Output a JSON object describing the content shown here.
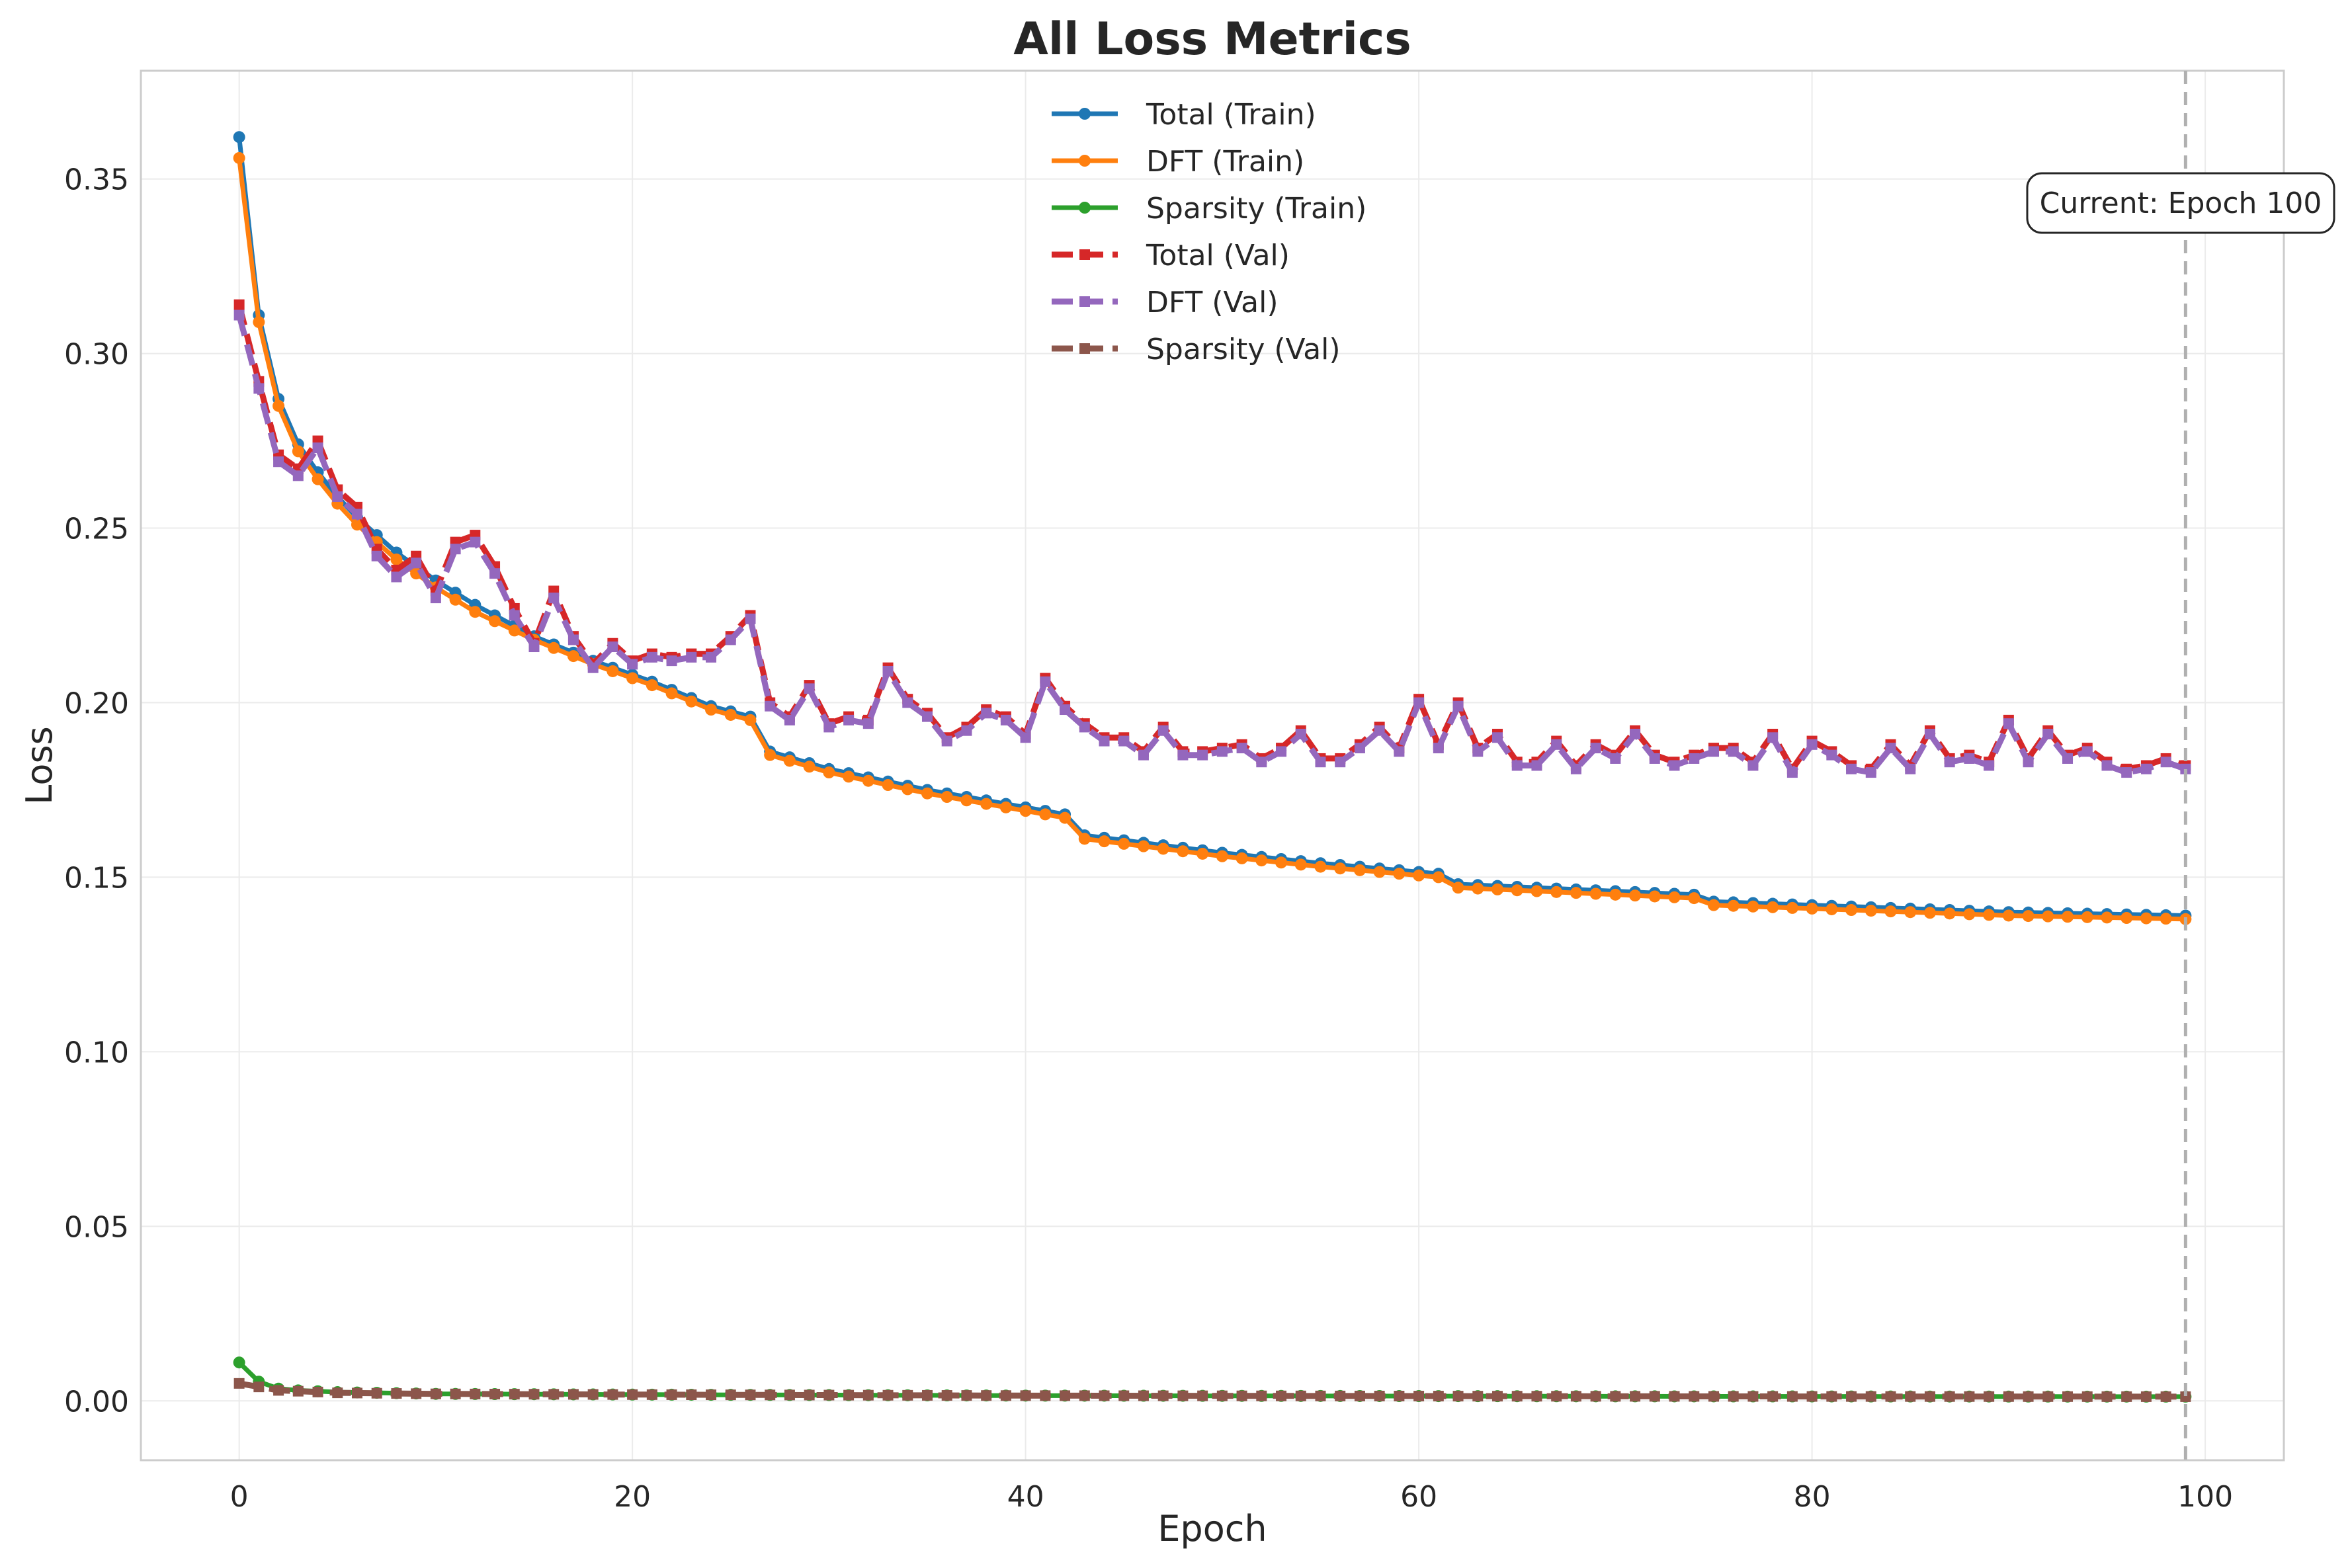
{
  "chart_data": {
    "type": "line",
    "title": "All Loss Metrics",
    "xlabel": "Epoch",
    "ylabel": "Loss",
    "xlim": [
      -5,
      104
    ],
    "ylim": [
      -0.017,
      0.381
    ],
    "xticks": [
      0,
      20,
      40,
      60,
      80,
      100
    ],
    "yticks": [
      0.0,
      0.05,
      0.1,
      0.15,
      0.2,
      0.25,
      0.3,
      0.35
    ],
    "ytick_labels": [
      "0.00",
      "0.05",
      "0.10",
      "0.15",
      "0.20",
      "0.25",
      "0.30",
      "0.35"
    ],
    "xtick_labels": [
      "0",
      "20",
      "40",
      "60",
      "80",
      "100"
    ],
    "grid": true,
    "legend_position": "upper-center",
    "annotation": {
      "text": "Current: Epoch 100",
      "epoch": 99
    },
    "series": [
      {
        "name": "Total (Train)",
        "color": "#1f77b4",
        "style": "solid",
        "marker": "circle",
        "knots": [
          [
            0,
            0.362
          ],
          [
            1,
            0.311
          ],
          [
            2,
            0.287
          ],
          [
            3,
            0.274
          ],
          [
            4,
            0.266
          ],
          [
            5,
            0.259
          ],
          [
            6,
            0.253
          ],
          [
            7,
            0.248
          ],
          [
            8,
            0.243
          ],
          [
            9,
            0.239
          ],
          [
            10,
            0.235
          ],
          [
            12,
            0.228
          ],
          [
            15,
            0.219
          ],
          [
            18,
            0.212
          ],
          [
            21,
            0.206
          ],
          [
            24,
            0.199
          ],
          [
            26,
            0.196
          ],
          [
            27,
            0.186
          ],
          [
            30,
            0.181
          ],
          [
            35,
            0.175
          ],
          [
            40,
            0.17
          ],
          [
            42,
            0.168
          ],
          [
            43,
            0.162
          ],
          [
            50,
            0.157
          ],
          [
            55,
            0.154
          ],
          [
            61,
            0.151
          ],
          [
            62,
            0.148
          ],
          [
            70,
            0.146
          ],
          [
            74,
            0.145
          ],
          [
            75,
            0.143
          ],
          [
            85,
            0.141
          ],
          [
            90,
            0.14
          ],
          [
            99,
            0.139
          ]
        ]
      },
      {
        "name": "DFT (Train)",
        "color": "#ff7f0e",
        "style": "solid",
        "marker": "circle",
        "knots": [
          [
            0,
            0.356
          ],
          [
            1,
            0.309
          ],
          [
            2,
            0.285
          ],
          [
            3,
            0.272
          ],
          [
            4,
            0.264
          ],
          [
            5,
            0.257
          ],
          [
            6,
            0.251
          ],
          [
            7,
            0.246
          ],
          [
            8,
            0.241
          ],
          [
            9,
            0.237
          ],
          [
            10,
            0.233
          ],
          [
            12,
            0.226
          ],
          [
            15,
            0.218
          ],
          [
            18,
            0.211
          ],
          [
            21,
            0.205
          ],
          [
            24,
            0.198
          ],
          [
            26,
            0.195
          ],
          [
            27,
            0.185
          ],
          [
            30,
            0.18
          ],
          [
            35,
            0.174
          ],
          [
            40,
            0.169
          ],
          [
            42,
            0.167
          ],
          [
            43,
            0.161
          ],
          [
            50,
            0.156
          ],
          [
            55,
            0.153
          ],
          [
            61,
            0.15
          ],
          [
            62,
            0.147
          ],
          [
            70,
            0.145
          ],
          [
            74,
            0.144
          ],
          [
            75,
            0.142
          ],
          [
            85,
            0.14
          ],
          [
            90,
            0.139
          ],
          [
            99,
            0.138
          ]
        ]
      },
      {
        "name": "Sparsity (Train)",
        "color": "#2ca02c",
        "style": "solid",
        "marker": "circle",
        "knots": [
          [
            0,
            0.011
          ],
          [
            1,
            0.0055
          ],
          [
            2,
            0.0035
          ],
          [
            3,
            0.003
          ],
          [
            5,
            0.0025
          ],
          [
            10,
            0.002
          ],
          [
            20,
            0.0018
          ],
          [
            40,
            0.0015
          ],
          [
            70,
            0.0013
          ],
          [
            99,
            0.0012
          ]
        ]
      },
      {
        "name": "Total (Val)",
        "color": "#d62728",
        "style": "dashed",
        "marker": "square",
        "values": [
          0.314,
          0.292,
          0.271,
          0.267,
          0.275,
          0.261,
          0.256,
          0.244,
          0.238,
          0.242,
          0.232,
          0.246,
          0.248,
          0.239,
          0.227,
          0.217,
          0.232,
          0.219,
          0.211,
          0.217,
          0.212,
          0.214,
          0.213,
          0.214,
          0.214,
          0.219,
          0.225,
          0.2,
          0.196,
          0.205,
          0.194,
          0.196,
          0.195,
          0.21,
          0.201,
          0.197,
          0.19,
          0.193,
          0.198,
          0.196,
          0.191,
          0.207,
          0.199,
          0.194,
          0.19,
          0.19,
          0.186,
          0.193,
          0.186,
          0.186,
          0.187,
          0.188,
          0.184,
          0.187,
          0.192,
          0.184,
          0.184,
          0.188,
          0.193,
          0.187,
          0.201,
          0.188,
          0.2,
          0.187,
          0.191,
          0.183,
          0.183,
          0.189,
          0.182,
          0.188,
          0.185,
          0.192,
          0.185,
          0.183,
          0.185,
          0.187,
          0.187,
          0.183,
          0.191,
          0.181,
          0.189,
          0.186,
          0.182,
          0.181,
          0.188,
          0.182,
          0.192,
          0.184,
          0.185,
          0.183,
          0.195,
          0.184,
          0.192,
          0.185,
          0.187,
          0.183,
          0.181,
          0.182,
          0.184,
          0.182
        ]
      },
      {
        "name": "DFT (Val)",
        "color": "#9467bd",
        "style": "dashed",
        "marker": "square",
        "values": [
          0.311,
          0.29,
          0.269,
          0.265,
          0.273,
          0.259,
          0.254,
          0.242,
          0.236,
          0.24,
          0.23,
          0.244,
          0.246,
          0.237,
          0.225,
          0.216,
          0.23,
          0.218,
          0.21,
          0.216,
          0.211,
          0.213,
          0.212,
          0.213,
          0.213,
          0.218,
          0.224,
          0.199,
          0.195,
          0.204,
          0.193,
          0.195,
          0.194,
          0.209,
          0.2,
          0.196,
          0.189,
          0.192,
          0.197,
          0.195,
          0.19,
          0.206,
          0.198,
          0.193,
          0.189,
          0.189,
          0.185,
          0.192,
          0.185,
          0.185,
          0.186,
          0.187,
          0.183,
          0.186,
          0.191,
          0.183,
          0.183,
          0.187,
          0.192,
          0.186,
          0.2,
          0.187,
          0.199,
          0.186,
          0.19,
          0.182,
          0.182,
          0.188,
          0.181,
          0.187,
          0.184,
          0.191,
          0.184,
          0.182,
          0.184,
          0.186,
          0.186,
          0.182,
          0.19,
          0.18,
          0.188,
          0.185,
          0.181,
          0.18,
          0.187,
          0.181,
          0.191,
          0.183,
          0.184,
          0.182,
          0.194,
          0.183,
          0.191,
          0.184,
          0.186,
          0.182,
          0.18,
          0.181,
          0.183,
          0.181
        ]
      },
      {
        "name": "Sparsity (Val)",
        "color": "#8c564b",
        "style": "dashed",
        "marker": "square",
        "knots": [
          [
            0,
            0.005
          ],
          [
            1,
            0.004
          ],
          [
            2,
            0.003
          ],
          [
            5,
            0.0023
          ],
          [
            10,
            0.002
          ],
          [
            20,
            0.0018
          ],
          [
            40,
            0.0015
          ],
          [
            70,
            0.0013
          ],
          [
            99,
            0.0012
          ]
        ]
      }
    ]
  }
}
